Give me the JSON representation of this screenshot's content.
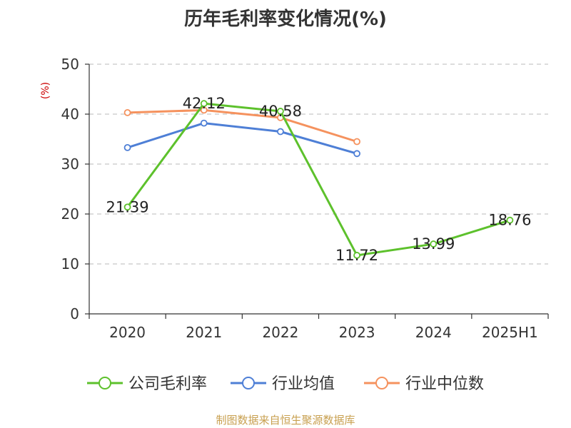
{
  "title": "历年毛利率变化情况(%)",
  "footer": "制图数据来自恒生聚源数据库",
  "chart_data": {
    "type": "line",
    "title": "历年毛利率变化情况(%)",
    "ylabel": "(%)",
    "xlabel": "",
    "categories": [
      "2020",
      "2021",
      "2022",
      "2023",
      "2024",
      "2025H1"
    ],
    "ylim": [
      0,
      50
    ],
    "yticks": [
      "0",
      "10",
      "20",
      "30",
      "40",
      "50"
    ],
    "grid": true,
    "legend_position": "bottom",
    "series": [
      {
        "name": "公司毛利率",
        "color": "#5dc12c",
        "values": [
          21.39,
          42.12,
          40.58,
          11.72,
          13.99,
          18.76
        ],
        "labels": [
          "21.39",
          "42.12",
          "40.58",
          "11.72",
          "13.99",
          "18.76"
        ]
      },
      {
        "name": "行业均值",
        "color": "#4e7fd6",
        "values": [
          33.3,
          38.2,
          36.5,
          32.1,
          null,
          null
        ]
      },
      {
        "name": "行业中位数",
        "color": "#f5925e",
        "values": [
          40.3,
          40.8,
          39.3,
          34.5,
          null,
          null
        ]
      }
    ]
  }
}
